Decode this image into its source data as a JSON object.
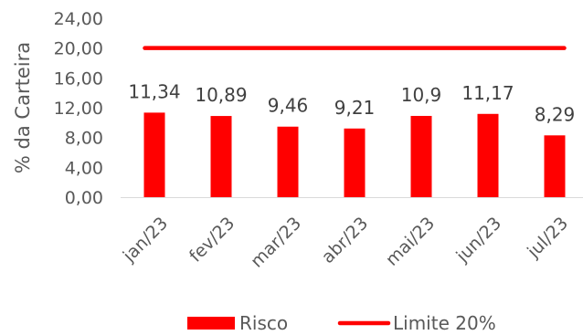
{
  "chart_data": {
    "type": "bar",
    "categories": [
      "jan/23",
      "fev/23",
      "mar/23",
      "abr/23",
      "mai/23",
      "jun/23",
      "jul/23"
    ],
    "series": [
      {
        "name": "Risco",
        "type": "bar",
        "values": [
          11.34,
          10.89,
          9.46,
          9.21,
          10.9,
          11.17,
          8.29
        ],
        "labels": [
          "11,34",
          "10,89",
          "9,46",
          "9,21",
          "10,9",
          "11,17",
          "8,29"
        ],
        "color": "#ff0000"
      },
      {
        "name": "Limite 20%",
        "type": "line",
        "values": [
          20,
          20,
          20,
          20,
          20,
          20,
          20
        ],
        "color": "#ff0000"
      }
    ],
    "ylabel": "% da Carteira",
    "ylim": [
      0,
      24
    ],
    "yticks": [
      0,
      4,
      8,
      12,
      16,
      20,
      24
    ],
    "ytick_labels": [
      "0,00",
      "4,00",
      "8,00",
      "12,00",
      "16,00",
      "20,00",
      "24,00"
    ],
    "legend_position": "bottom",
    "grid": false
  }
}
